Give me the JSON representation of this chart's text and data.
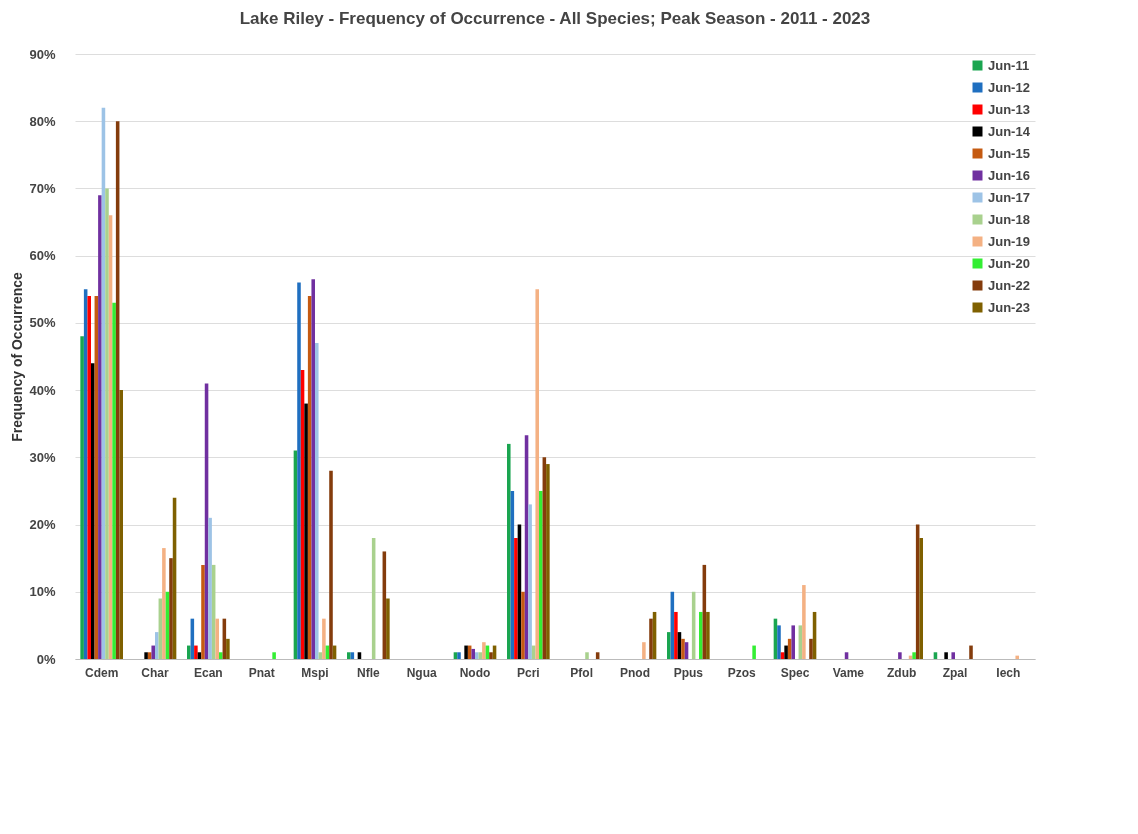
{
  "chart_data": {
    "type": "bar",
    "title": "Lake Riley - Frequency of Occurrence - All Species; Peak Season - 2011 - 2023",
    "ylabel": "Frequency of Occurrence",
    "categories": [
      "Cdem",
      "Char",
      "Ecan",
      "Pnat",
      "Mspi",
      "Nfle",
      "Ngua",
      "Nodo",
      "Pcri",
      "Pfol",
      "Pnod",
      "Ppus",
      "Pzos",
      "Spec",
      "Vame",
      "Zdub",
      "Zpal",
      "Iech"
    ],
    "ylim": [
      0,
      90
    ],
    "yticks": [
      {
        "value": 0,
        "label": "0%"
      },
      {
        "value": 10,
        "label": "10%"
      },
      {
        "value": 20,
        "label": "20%"
      },
      {
        "value": 30,
        "label": "30%"
      },
      {
        "value": 40,
        "label": "40%"
      },
      {
        "value": 50,
        "label": "50%"
      },
      {
        "value": 60,
        "label": "60%"
      },
      {
        "value": 70,
        "label": "70%"
      },
      {
        "value": 80,
        "label": "80%"
      },
      {
        "value": 90,
        "label": "90%"
      }
    ],
    "grid": "y",
    "legend": "top right",
    "series": [
      {
        "name": "Jun-11",
        "color": "#1aa550",
        "values": [
          48,
          null,
          2,
          null,
          31,
          1,
          null,
          1,
          32,
          null,
          null,
          4,
          null,
          6,
          null,
          null,
          1,
          null
        ]
      },
      {
        "name": "Jun-12",
        "color": "#1f6fc0",
        "values": [
          55,
          null,
          6,
          null,
          56,
          1,
          null,
          1,
          25,
          null,
          null,
          10,
          null,
          5,
          null,
          null,
          null,
          null
        ]
      },
      {
        "name": "Jun-13",
        "color": "#ff0000",
        "values": [
          54,
          null,
          2,
          null,
          43,
          null,
          null,
          null,
          18,
          null,
          null,
          7,
          null,
          1,
          null,
          null,
          null,
          null
        ]
      },
      {
        "name": "Jun-14",
        "color": "#000000",
        "values": [
          44,
          1,
          1,
          null,
          38,
          1,
          null,
          2,
          20,
          null,
          null,
          4,
          null,
          2,
          null,
          null,
          1,
          null
        ]
      },
      {
        "name": "Jun-15",
        "color": "#c55a11",
        "values": [
          54,
          1,
          14,
          null,
          54,
          null,
          null,
          2,
          10,
          null,
          null,
          3,
          null,
          3,
          null,
          null,
          null,
          null
        ]
      },
      {
        "name": "Jun-16",
        "color": "#7030a0",
        "values": [
          69,
          2,
          41,
          null,
          56.5,
          null,
          null,
          1.5,
          33.3,
          null,
          null,
          2.5,
          null,
          5,
          1,
          1,
          1,
          null
        ]
      },
      {
        "name": "Jun-17",
        "color": "#9dc3e6",
        "values": [
          82,
          4,
          21,
          null,
          47,
          null,
          null,
          1,
          23,
          null,
          null,
          null,
          null,
          null,
          null,
          null,
          null,
          null
        ]
      },
      {
        "name": "Jun-18",
        "color": "#a9d18e",
        "values": [
          70,
          9,
          14,
          null,
          1,
          18,
          null,
          1,
          2,
          1,
          null,
          10,
          null,
          5,
          null,
          null,
          null,
          null
        ]
      },
      {
        "name": "Jun-19",
        "color": "#f4b183",
        "values": [
          66,
          16.5,
          6,
          null,
          6,
          null,
          null,
          2.5,
          55,
          null,
          2.5,
          null,
          null,
          11,
          null,
          0.5,
          null,
          0.5
        ]
      },
      {
        "name": "Jun-20",
        "color": "#33ee33",
        "values": [
          53,
          10,
          1,
          1,
          2,
          null,
          null,
          2,
          25,
          null,
          null,
          7,
          2,
          null,
          null,
          1,
          null,
          null
        ]
      },
      {
        "name": "Jun-22",
        "color": "#843c0c",
        "values": [
          80,
          15,
          6,
          null,
          28,
          16,
          null,
          1,
          30,
          1,
          6,
          14,
          null,
          3,
          null,
          20,
          2,
          null
        ]
      },
      {
        "name": "Jun-23",
        "color": "#7f6000",
        "values": [
          40,
          24,
          3,
          null,
          2,
          9,
          null,
          2,
          29,
          null,
          7,
          7,
          null,
          7,
          null,
          18,
          null,
          null
        ]
      }
    ]
  }
}
